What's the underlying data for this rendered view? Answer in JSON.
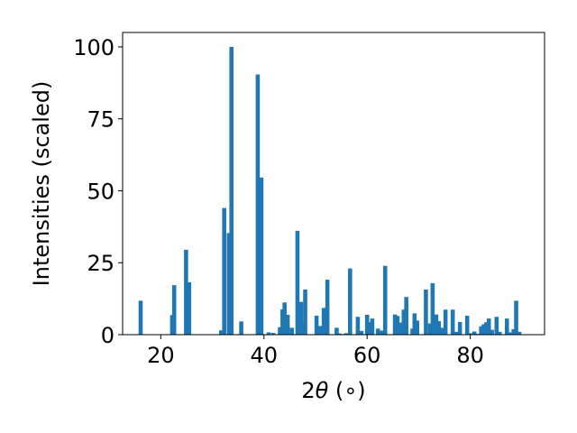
{
  "chart_data": {
    "type": "bar",
    "xlabel_prefix": "2",
    "xlabel_theta": "θ",
    "xlabel_suffix": " (∘)",
    "ylabel": "Intensities (scaled)",
    "xlim": [
      12.6,
      94.4
    ],
    "ylim": [
      0,
      105
    ],
    "xticks": [
      20,
      40,
      60,
      80
    ],
    "yticks": [
      0,
      25,
      50,
      75,
      100
    ],
    "grid": false,
    "bar_color": "#1f77b4",
    "bars": [
      {
        "x": 16.1,
        "y": 11.8
      },
      {
        "x": 22.2,
        "y": 6.8
      },
      {
        "x": 22.6,
        "y": 17.2
      },
      {
        "x": 24.9,
        "y": 29.5
      },
      {
        "x": 25.5,
        "y": 18.2
      },
      {
        "x": 31.7,
        "y": 1.5
      },
      {
        "x": 32.3,
        "y": 44.0
      },
      {
        "x": 33.2,
        "y": 35.3
      },
      {
        "x": 33.7,
        "y": 100.0
      },
      {
        "x": 35.6,
        "y": 4.6
      },
      {
        "x": 38.8,
        "y": 90.4
      },
      {
        "x": 39.5,
        "y": 54.6
      },
      {
        "x": 40.9,
        "y": 0.8
      },
      {
        "x": 41.8,
        "y": 0.6
      },
      {
        "x": 43.1,
        "y": 2.6
      },
      {
        "x": 43.6,
        "y": 8.8
      },
      {
        "x": 44.0,
        "y": 11.2
      },
      {
        "x": 44.6,
        "y": 6.9
      },
      {
        "x": 45.4,
        "y": 2.4
      },
      {
        "x": 46.5,
        "y": 36.1
      },
      {
        "x": 47.2,
        "y": 11.4
      },
      {
        "x": 47.6,
        "y": 4.2
      },
      {
        "x": 48.0,
        "y": 15.7
      },
      {
        "x": 50.2,
        "y": 6.6
      },
      {
        "x": 50.9,
        "y": 3.0
      },
      {
        "x": 51.6,
        "y": 9.3
      },
      {
        "x": 52.3,
        "y": 19.1
      },
      {
        "x": 54.1,
        "y": 2.4
      },
      {
        "x": 54.7,
        "y": 0.4
      },
      {
        "x": 55.9,
        "y": 0.5
      },
      {
        "x": 56.7,
        "y": 23.0
      },
      {
        "x": 58.2,
        "y": 6.2
      },
      {
        "x": 58.9,
        "y": 1.3
      },
      {
        "x": 60.0,
        "y": 6.9
      },
      {
        "x": 60.6,
        "y": 4.4
      },
      {
        "x": 61.0,
        "y": 5.6
      },
      {
        "x": 62.1,
        "y": 2.1
      },
      {
        "x": 62.8,
        "y": 1.4
      },
      {
        "x": 63.5,
        "y": 23.9
      },
      {
        "x": 65.4,
        "y": 7.0
      },
      {
        "x": 65.9,
        "y": 6.5
      },
      {
        "x": 66.4,
        "y": 4.2
      },
      {
        "x": 67.1,
        "y": 8.7
      },
      {
        "x": 67.6,
        "y": 13.1
      },
      {
        "x": 68.8,
        "y": 2.1
      },
      {
        "x": 69.2,
        "y": 7.4
      },
      {
        "x": 69.7,
        "y": 4.9
      },
      {
        "x": 71.4,
        "y": 15.7
      },
      {
        "x": 72.2,
        "y": 3.9
      },
      {
        "x": 72.7,
        "y": 17.9
      },
      {
        "x": 73.4,
        "y": 7.0
      },
      {
        "x": 73.9,
        "y": 4.7
      },
      {
        "x": 74.6,
        "y": 2.4
      },
      {
        "x": 75.2,
        "y": 8.7
      },
      {
        "x": 76.6,
        "y": 8.7
      },
      {
        "x": 77.4,
        "y": 1.0
      },
      {
        "x": 78.0,
        "y": 4.4
      },
      {
        "x": 79.4,
        "y": 6.6
      },
      {
        "x": 80.1,
        "y": 0.5
      },
      {
        "x": 80.8,
        "y": 1.1
      },
      {
        "x": 81.4,
        "y": 0.3
      },
      {
        "x": 82.1,
        "y": 2.9
      },
      {
        "x": 82.6,
        "y": 3.6
      },
      {
        "x": 83.1,
        "y": 4.3
      },
      {
        "x": 83.6,
        "y": 5.6
      },
      {
        "x": 84.2,
        "y": 1.7
      },
      {
        "x": 85.1,
        "y": 6.2
      },
      {
        "x": 85.7,
        "y": 1.0
      },
      {
        "x": 87.1,
        "y": 5.6
      },
      {
        "x": 87.6,
        "y": 0.8
      },
      {
        "x": 88.4,
        "y": 1.9
      },
      {
        "x": 88.9,
        "y": 11.8
      },
      {
        "x": 89.5,
        "y": 1.0
      }
    ]
  }
}
